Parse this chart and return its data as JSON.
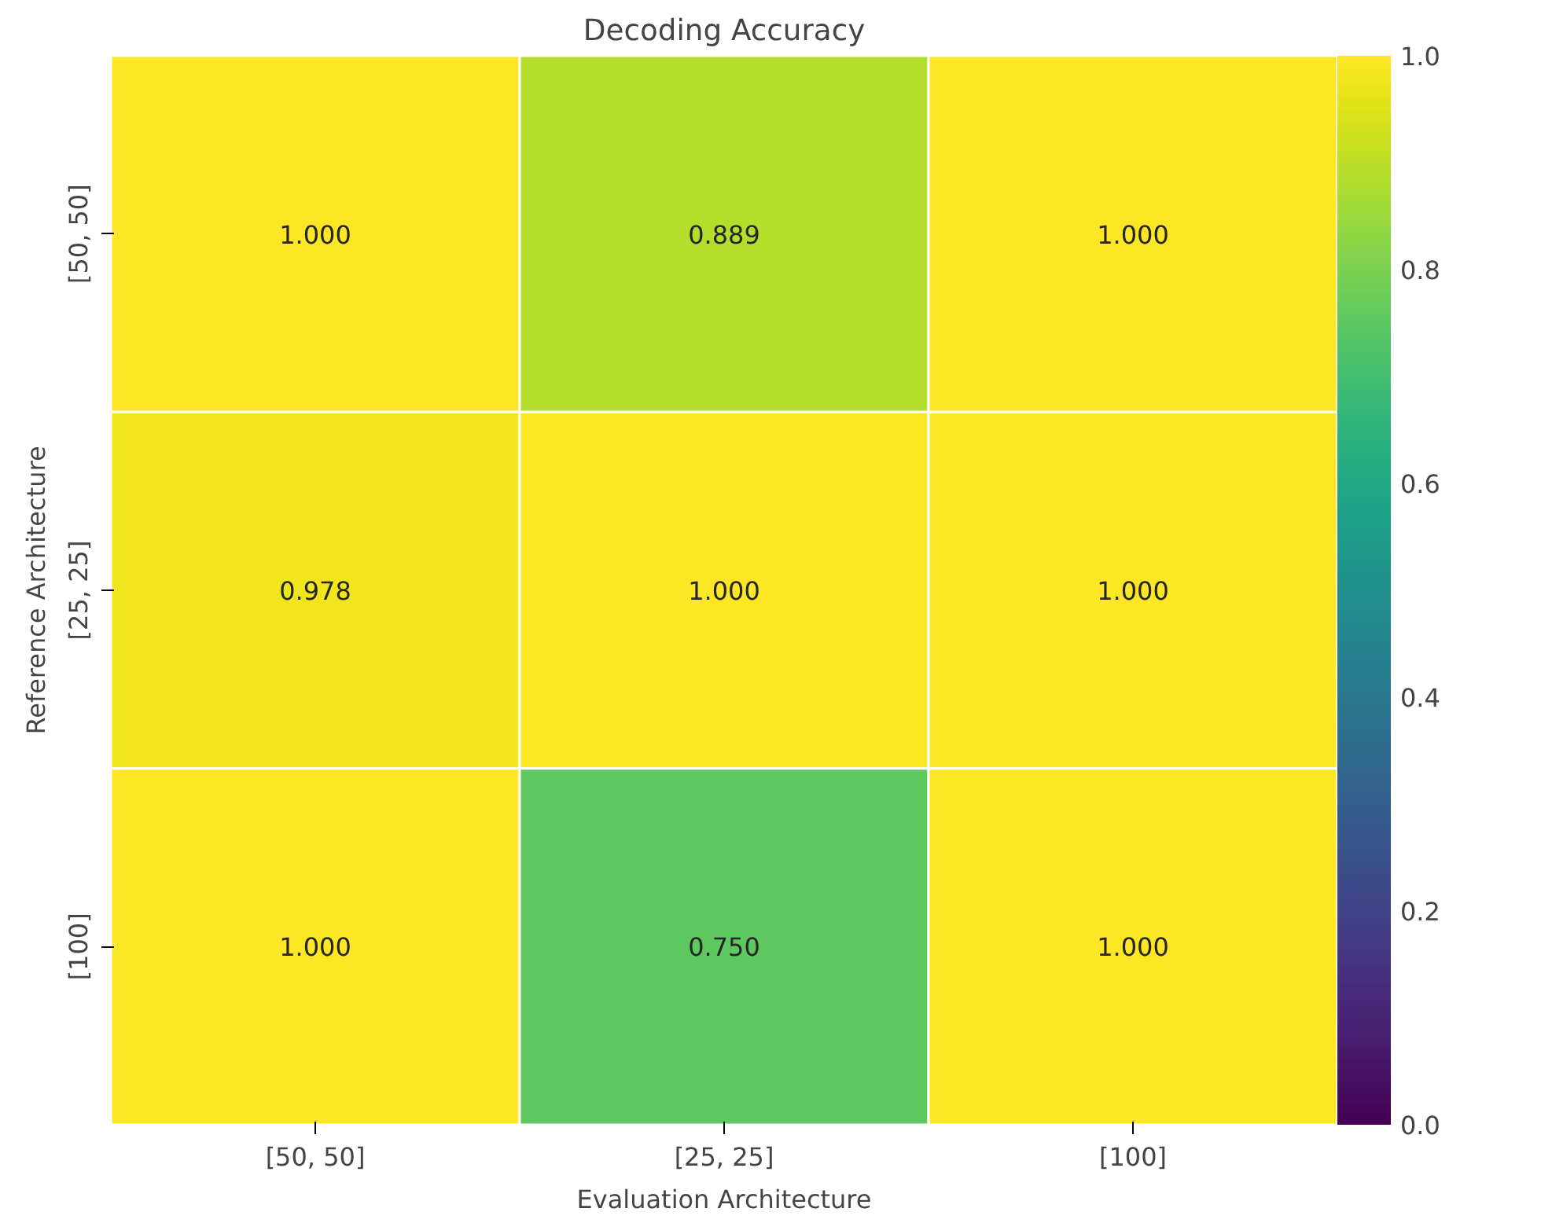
{
  "chart_data": {
    "type": "heatmap",
    "title": "Decoding Accuracy",
    "xlabel": "Evaluation Architecture",
    "ylabel": "Reference Architecture",
    "categories": [
      "[50, 50]",
      "[25, 25]",
      "[100]"
    ],
    "y_categories": [
      "[50, 50]",
      "[25, 25]",
      "[100]"
    ],
    "cells": [
      [
        1.0,
        0.889,
        1.0
      ],
      [
        0.978,
        1.0,
        1.0
      ],
      [
        1.0,
        0.75,
        1.0
      ]
    ],
    "cell_labels": [
      [
        "1.000",
        "0.889",
        "1.000"
      ],
      [
        "0.978",
        "1.000",
        "1.000"
      ],
      [
        "1.000",
        "0.750",
        "1.000"
      ]
    ],
    "clim": [
      0,
      1
    ],
    "cticks": [
      {
        "value": 0,
        "label": "0.0"
      },
      {
        "value": 0.2,
        "label": "0.2"
      },
      {
        "value": 0.4,
        "label": "0.4"
      },
      {
        "value": 0.6,
        "label": "0.6"
      },
      {
        "value": 0.8,
        "label": "0.8"
      },
      {
        "value": 1,
        "label": "1.0"
      }
    ]
  }
}
